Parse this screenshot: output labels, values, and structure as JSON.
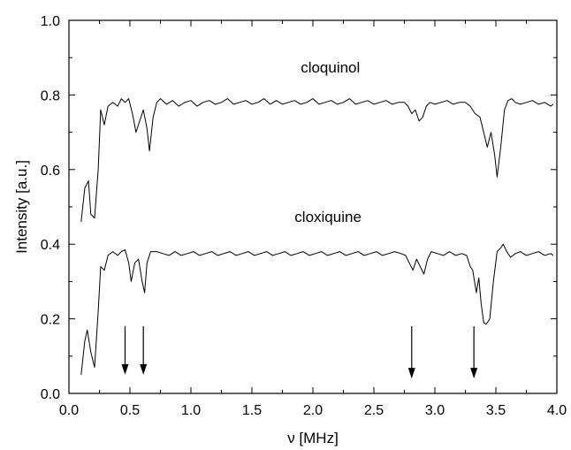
{
  "chart_data": {
    "type": "line",
    "title": "",
    "xlabel": "ν [MHz]",
    "ylabel": "Intensity [a.u.]",
    "xlim": [
      0.0,
      4.0
    ],
    "ylim": [
      0.0,
      1.0
    ],
    "xticks": [
      "0.0",
      "0.5",
      "1.0",
      "1.5",
      "2.0",
      "2.5",
      "3.0",
      "3.5",
      "4.0"
    ],
    "yticks": [
      "0.0",
      "0.2",
      "0.4",
      "0.6",
      "0.8",
      "1.0"
    ],
    "grid": false,
    "line_color": "#000000",
    "series": [
      {
        "name": "cloquinol",
        "label_position": [
          1.9,
          0.86
        ],
        "points": [
          [
            0.1,
            0.46
          ],
          [
            0.13,
            0.55
          ],
          [
            0.16,
            0.57
          ],
          [
            0.18,
            0.48
          ],
          [
            0.21,
            0.47
          ],
          [
            0.24,
            0.6
          ],
          [
            0.26,
            0.76
          ],
          [
            0.29,
            0.72
          ],
          [
            0.32,
            0.77
          ],
          [
            0.36,
            0.78
          ],
          [
            0.4,
            0.77
          ],
          [
            0.43,
            0.79
          ],
          [
            0.46,
            0.78
          ],
          [
            0.49,
            0.79
          ],
          [
            0.52,
            0.75
          ],
          [
            0.55,
            0.7
          ],
          [
            0.58,
            0.73
          ],
          [
            0.61,
            0.76
          ],
          [
            0.64,
            0.71
          ],
          [
            0.66,
            0.65
          ],
          [
            0.69,
            0.74
          ],
          [
            0.72,
            0.78
          ],
          [
            0.75,
            0.79
          ],
          [
            0.8,
            0.775
          ],
          [
            0.85,
            0.785
          ],
          [
            0.9,
            0.77
          ],
          [
            0.95,
            0.78
          ],
          [
            1.0,
            0.785
          ],
          [
            1.05,
            0.77
          ],
          [
            1.1,
            0.78
          ],
          [
            1.15,
            0.785
          ],
          [
            1.2,
            0.775
          ],
          [
            1.25,
            0.78
          ],
          [
            1.3,
            0.79
          ],
          [
            1.35,
            0.775
          ],
          [
            1.4,
            0.78
          ],
          [
            1.45,
            0.785
          ],
          [
            1.5,
            0.775
          ],
          [
            1.55,
            0.78
          ],
          [
            1.6,
            0.79
          ],
          [
            1.65,
            0.775
          ],
          [
            1.7,
            0.785
          ],
          [
            1.75,
            0.775
          ],
          [
            1.8,
            0.78
          ],
          [
            1.85,
            0.785
          ],
          [
            1.9,
            0.775
          ],
          [
            1.95,
            0.78
          ],
          [
            2.0,
            0.79
          ],
          [
            2.05,
            0.775
          ],
          [
            2.1,
            0.78
          ],
          [
            2.15,
            0.785
          ],
          [
            2.2,
            0.775
          ],
          [
            2.25,
            0.78
          ],
          [
            2.3,
            0.79
          ],
          [
            2.35,
            0.775
          ],
          [
            2.4,
            0.78
          ],
          [
            2.45,
            0.785
          ],
          [
            2.5,
            0.775
          ],
          [
            2.55,
            0.78
          ],
          [
            2.6,
            0.785
          ],
          [
            2.65,
            0.775
          ],
          [
            2.7,
            0.78
          ],
          [
            2.75,
            0.78
          ],
          [
            2.78,
            0.77
          ],
          [
            2.81,
            0.75
          ],
          [
            2.84,
            0.76
          ],
          [
            2.87,
            0.73
          ],
          [
            2.9,
            0.74
          ],
          [
            2.93,
            0.77
          ],
          [
            2.96,
            0.78
          ],
          [
            3.0,
            0.775
          ],
          [
            3.05,
            0.78
          ],
          [
            3.1,
            0.785
          ],
          [
            3.15,
            0.775
          ],
          [
            3.2,
            0.78
          ],
          [
            3.25,
            0.78
          ],
          [
            3.29,
            0.77
          ],
          [
            3.33,
            0.75
          ],
          [
            3.37,
            0.74
          ],
          [
            3.4,
            0.7
          ],
          [
            3.43,
            0.66
          ],
          [
            3.46,
            0.7
          ],
          [
            3.49,
            0.64
          ],
          [
            3.51,
            0.58
          ],
          [
            3.54,
            0.66
          ],
          [
            3.57,
            0.76
          ],
          [
            3.6,
            0.785
          ],
          [
            3.63,
            0.79
          ],
          [
            3.66,
            0.78
          ],
          [
            3.7,
            0.775
          ],
          [
            3.75,
            0.78
          ],
          [
            3.8,
            0.785
          ],
          [
            3.85,
            0.775
          ],
          [
            3.9,
            0.78
          ],
          [
            3.95,
            0.77
          ],
          [
            3.97,
            0.775
          ]
        ]
      },
      {
        "name": "cloxiquine",
        "label_position": [
          1.85,
          0.46
        ],
        "points": [
          [
            0.1,
            0.05
          ],
          [
            0.13,
            0.14
          ],
          [
            0.15,
            0.17
          ],
          [
            0.18,
            0.11
          ],
          [
            0.21,
            0.07
          ],
          [
            0.24,
            0.22
          ],
          [
            0.26,
            0.34
          ],
          [
            0.29,
            0.33
          ],
          [
            0.32,
            0.37
          ],
          [
            0.36,
            0.38
          ],
          [
            0.4,
            0.37
          ],
          [
            0.43,
            0.38
          ],
          [
            0.46,
            0.385
          ],
          [
            0.49,
            0.35
          ],
          [
            0.51,
            0.3
          ],
          [
            0.54,
            0.35
          ],
          [
            0.57,
            0.36
          ],
          [
            0.6,
            0.3
          ],
          [
            0.62,
            0.27
          ],
          [
            0.64,
            0.35
          ],
          [
            0.67,
            0.38
          ],
          [
            0.72,
            0.38
          ],
          [
            0.77,
            0.375
          ],
          [
            0.82,
            0.37
          ],
          [
            0.87,
            0.38
          ],
          [
            0.92,
            0.37
          ],
          [
            0.97,
            0.375
          ],
          [
            1.02,
            0.38
          ],
          [
            1.07,
            0.37
          ],
          [
            1.12,
            0.375
          ],
          [
            1.17,
            0.38
          ],
          [
            1.22,
            0.37
          ],
          [
            1.27,
            0.375
          ],
          [
            1.32,
            0.38
          ],
          [
            1.37,
            0.37
          ],
          [
            1.42,
            0.375
          ],
          [
            1.47,
            0.38
          ],
          [
            1.52,
            0.37
          ],
          [
            1.57,
            0.375
          ],
          [
            1.62,
            0.38
          ],
          [
            1.67,
            0.37
          ],
          [
            1.72,
            0.375
          ],
          [
            1.77,
            0.38
          ],
          [
            1.82,
            0.37
          ],
          [
            1.87,
            0.375
          ],
          [
            1.92,
            0.38
          ],
          [
            1.97,
            0.37
          ],
          [
            2.02,
            0.375
          ],
          [
            2.07,
            0.38
          ],
          [
            2.12,
            0.37
          ],
          [
            2.17,
            0.375
          ],
          [
            2.22,
            0.38
          ],
          [
            2.27,
            0.37
          ],
          [
            2.32,
            0.375
          ],
          [
            2.37,
            0.38
          ],
          [
            2.42,
            0.37
          ],
          [
            2.47,
            0.375
          ],
          [
            2.52,
            0.38
          ],
          [
            2.57,
            0.37
          ],
          [
            2.62,
            0.375
          ],
          [
            2.67,
            0.38
          ],
          [
            2.72,
            0.375
          ],
          [
            2.76,
            0.37
          ],
          [
            2.79,
            0.35
          ],
          [
            2.82,
            0.33
          ],
          [
            2.85,
            0.36
          ],
          [
            2.88,
            0.34
          ],
          [
            2.91,
            0.32
          ],
          [
            2.94,
            0.36
          ],
          [
            2.97,
            0.38
          ],
          [
            3.02,
            0.375
          ],
          [
            3.07,
            0.37
          ],
          [
            3.12,
            0.38
          ],
          [
            3.17,
            0.37
          ],
          [
            3.22,
            0.375
          ],
          [
            3.26,
            0.37
          ],
          [
            3.29,
            0.34
          ],
          [
            3.31,
            0.33
          ],
          [
            3.34,
            0.27
          ],
          [
            3.36,
            0.31
          ],
          [
            3.38,
            0.24
          ],
          [
            3.4,
            0.19
          ],
          [
            3.42,
            0.185
          ],
          [
            3.45,
            0.2
          ],
          [
            3.48,
            0.3
          ],
          [
            3.51,
            0.38
          ],
          [
            3.54,
            0.39
          ],
          [
            3.56,
            0.4
          ],
          [
            3.59,
            0.38
          ],
          [
            3.62,
            0.365
          ],
          [
            3.66,
            0.375
          ],
          [
            3.7,
            0.38
          ],
          [
            3.75,
            0.37
          ],
          [
            3.8,
            0.375
          ],
          [
            3.85,
            0.38
          ],
          [
            3.9,
            0.37
          ],
          [
            3.95,
            0.375
          ],
          [
            3.97,
            0.37
          ]
        ]
      }
    ],
    "annotations": [
      {
        "type": "arrow-down",
        "x": 0.46,
        "y_top": 0.18,
        "y_bottom": 0.05
      },
      {
        "type": "arrow-down",
        "x": 0.61,
        "y_top": 0.18,
        "y_bottom": 0.05
      },
      {
        "type": "arrow-down",
        "x": 2.81,
        "y_top": 0.18,
        "y_bottom": 0.04
      },
      {
        "type": "arrow-down",
        "x": 3.32,
        "y_top": 0.18,
        "y_bottom": 0.04
      }
    ]
  }
}
